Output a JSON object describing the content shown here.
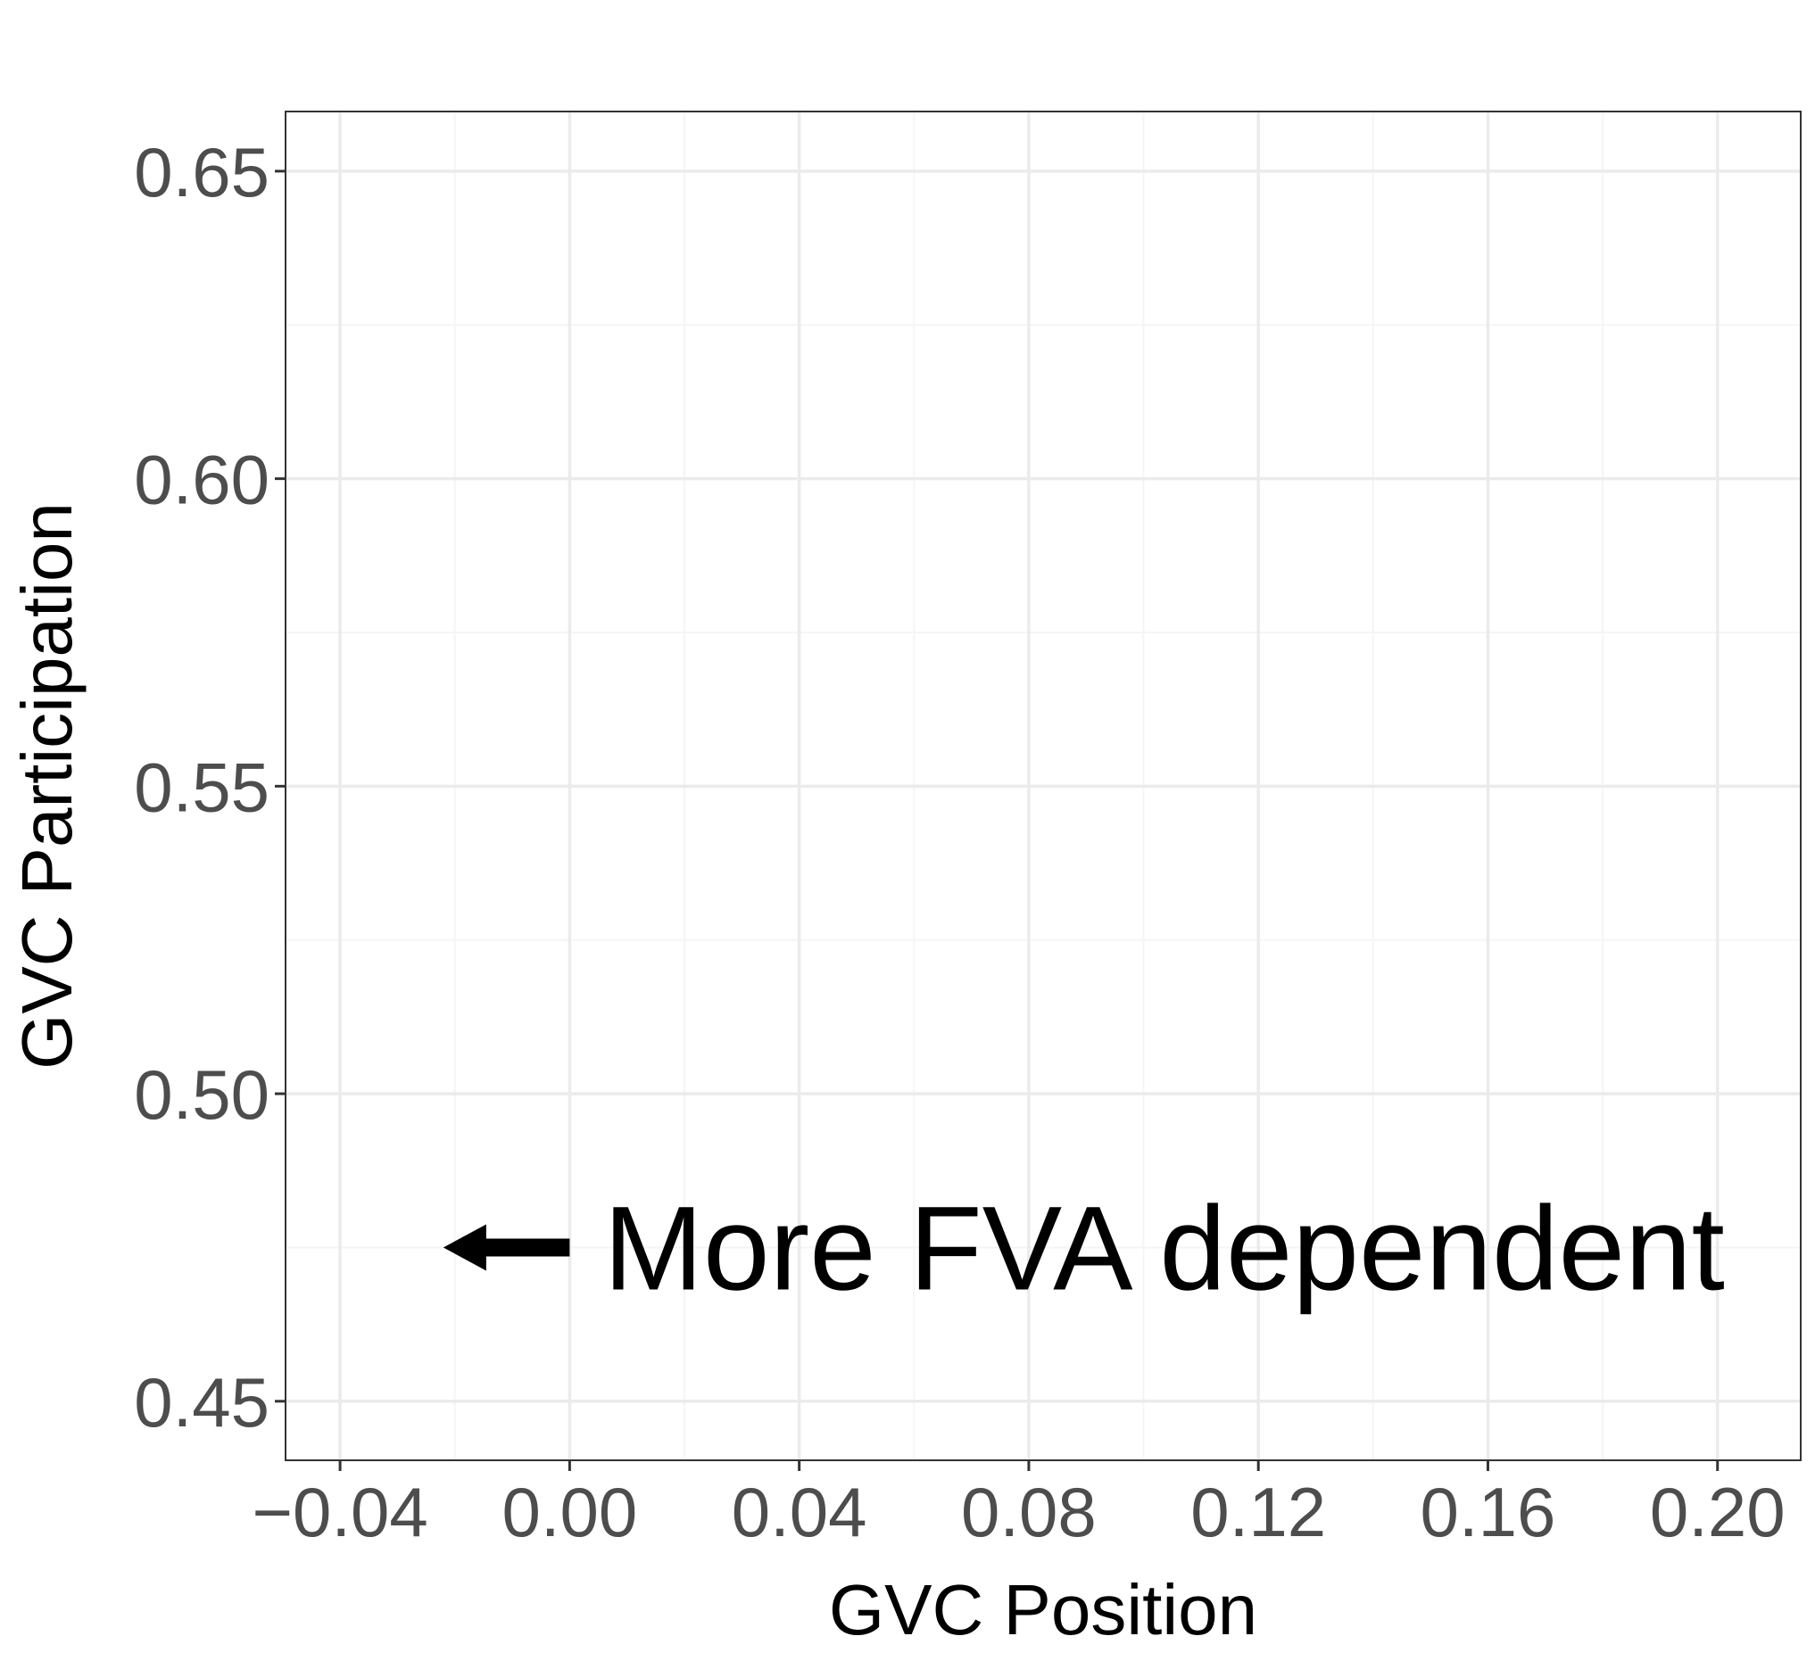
{
  "chart_data": {
    "type": "scatter",
    "title": "",
    "xlabel": "GVC Position",
    "ylabel": "GVC Participation",
    "xlim": [
      -0.0495,
      0.2145
    ],
    "ylim": [
      0.4404,
      0.6597
    ],
    "x_ticks": [
      -0.04,
      0.0,
      0.04,
      0.08,
      0.12,
      0.16,
      0.2
    ],
    "x_tick_labels": [
      "−0.04",
      "0.00",
      "0.04",
      "0.08",
      "0.12",
      "0.16",
      "0.20"
    ],
    "y_ticks": [
      0.45,
      0.5,
      0.55,
      0.6,
      0.65
    ],
    "y_tick_labels": [
      "0.45",
      "0.50",
      "0.55",
      "0.60",
      "0.65"
    ],
    "x_minor_ticks": [
      -0.02,
      0.02,
      0.06,
      0.1,
      0.14,
      0.18
    ],
    "y_minor_ticks": [
      0.475,
      0.525,
      0.575,
      0.625
    ],
    "grid": true,
    "series": [],
    "annotation": {
      "text": "More FVA dependent",
      "arrow_from": [
        0.0,
        0.475
      ],
      "arrow_to": [
        -0.022,
        0.475
      ],
      "arrow_direction": "left"
    }
  },
  "colors": {
    "background": "#ffffff",
    "panel_border": "#333333",
    "grid_major": "#ebebeb",
    "grid_minor": "#f5f5f5",
    "tick_text": "#4d4d4d",
    "axis_title": "#000000",
    "annotation": "#000000"
  }
}
